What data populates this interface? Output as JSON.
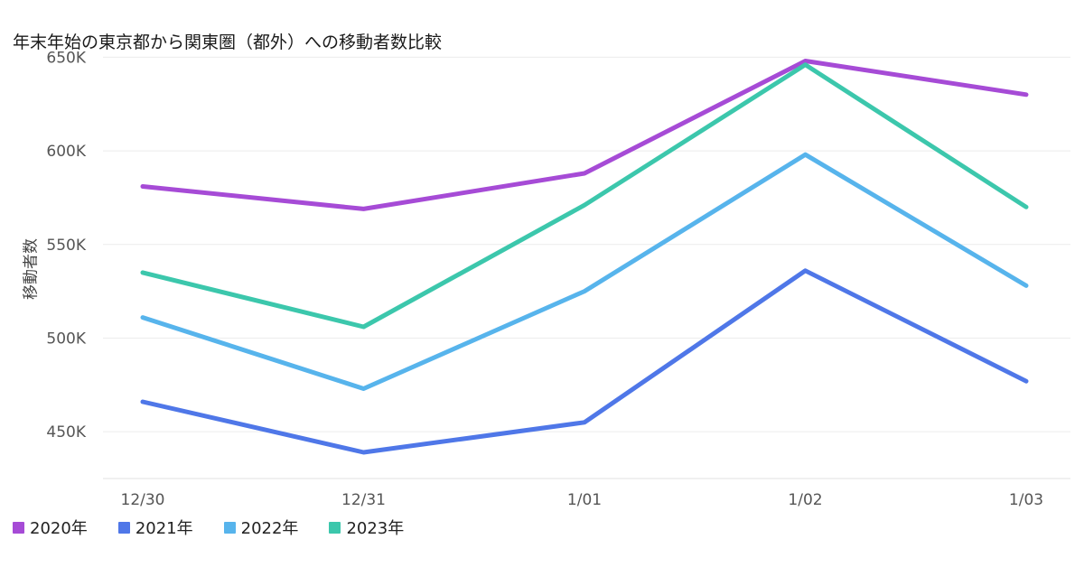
{
  "chart_data": {
    "type": "line",
    "title": "年末年始の東京都から関東圏（都外）への移動者数比較",
    "xlabel": "",
    "ylabel": "移動者数",
    "categories": [
      "12/30",
      "12/31",
      "1/01",
      "1/02",
      "1/03"
    ],
    "ylim": [
      425000,
      655000
    ],
    "yticks": [
      450000,
      500000,
      550000,
      600000,
      650000
    ],
    "ytick_labels": [
      "450K",
      "500K",
      "550K",
      "600K",
      "650K"
    ],
    "grid": true,
    "legend_position": "bottom-left",
    "series": [
      {
        "name": "2020年",
        "color": "#A64BD6",
        "values": [
          581000,
          569000,
          588000,
          648000,
          630000
        ]
      },
      {
        "name": "2021年",
        "color": "#4F77E8",
        "values": [
          466000,
          439000,
          455000,
          536000,
          477000
        ]
      },
      {
        "name": "2022年",
        "color": "#57B4EC",
        "values": [
          511000,
          473000,
          525000,
          598000,
          528000
        ]
      },
      {
        "name": "2023年",
        "color": "#3CC7AC",
        "values": [
          535000,
          506000,
          571000,
          646000,
          570000
        ]
      }
    ]
  }
}
